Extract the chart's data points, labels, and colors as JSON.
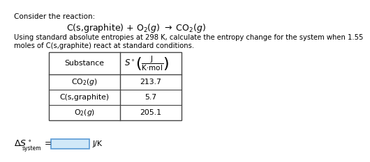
{
  "title_line1": "Consider the reaction:",
  "reaction_mathtext": "C(s,graphite) + O$_2$($g$) $\\rightarrow$ CO$_2$($g$)",
  "desc_line1": "Using standard absolute entropies at 298 K, calculate the entropy change for the system when 1.55",
  "desc_line2": "moles of C(s,graphite) react at standard conditions.",
  "table_substances": [
    "CO$_2$($g$)",
    "C(s,graphite)",
    "O$_2$($g$)"
  ],
  "table_values": [
    "213.7",
    "5.7",
    "205.1"
  ],
  "table_header_substance": "Substance",
  "delta_s_units": "J/K",
  "delta_s_sub": "system",
  "bg_color": "#ffffff",
  "text_color": "#000000",
  "box_color": "#d0e8f8",
  "box_edge_color": "#5b9bd5"
}
